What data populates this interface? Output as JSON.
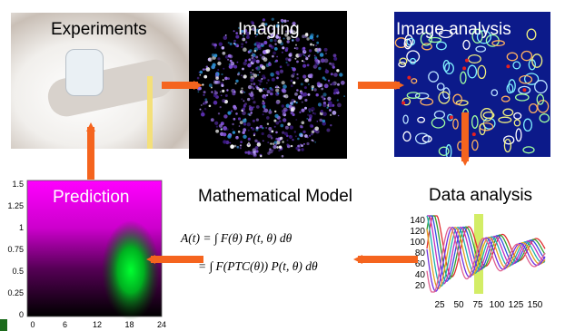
{
  "steps": {
    "experiments": "Experiments",
    "imaging": "Imaging",
    "image_analysis": "Image analysis",
    "data_analysis": "Data analysis",
    "model": "Mathematical Model",
    "prediction": "Prediction"
  },
  "equation": {
    "line1": "A(t) = ∫ F(θ) P(t, θ) dθ",
    "line2": "= ∫ F(PTC(θ)) P(t, θ) dθ"
  },
  "colors": {
    "arrow": "#f5641e",
    "microscopy": "#4a1a8c",
    "segmentation_bg": "#0c1a8a",
    "prediction_top": "#ff00ff",
    "prediction_hot": "#00e030"
  },
  "chart_data": [
    {
      "type": "heatmap",
      "x_ticks": [
        "0",
        "6",
        "12",
        "18",
        "24"
      ],
      "y_ticks": [
        "0",
        "0.25",
        "0.5",
        "0.75",
        "1",
        "1.25",
        "1.5"
      ],
      "xlim": [
        0,
        24
      ],
      "ylim": [
        0,
        1.5
      ]
    },
    {
      "type": "line",
      "x_ticks": [
        "25",
        "50",
        "75",
        "100",
        "125",
        "150"
      ],
      "y_ticks": [
        "20",
        "40",
        "60",
        "80",
        "100",
        "120",
        "140"
      ]
    }
  ]
}
